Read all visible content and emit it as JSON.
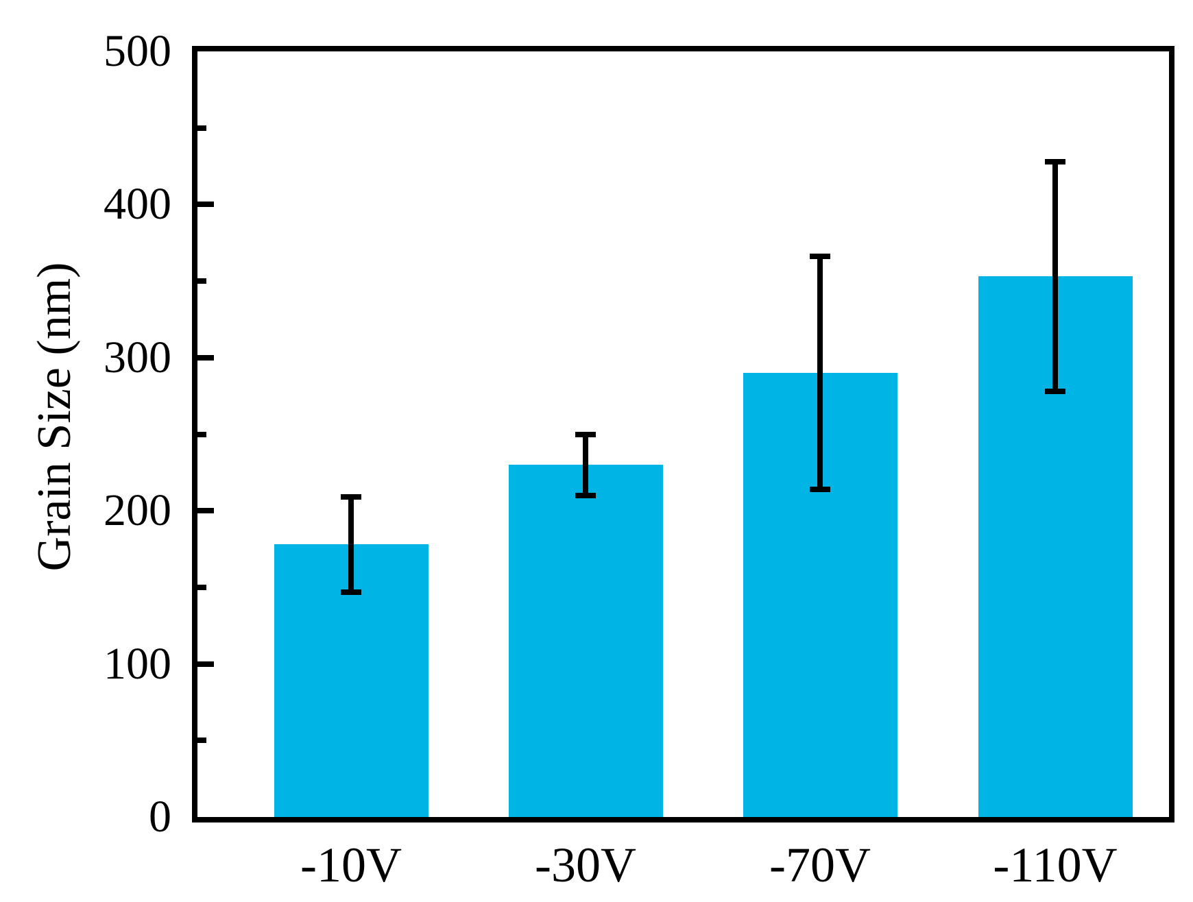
{
  "chart_data": {
    "type": "bar",
    "title": "",
    "categories": [
      "-10V",
      "-30V",
      "-70V",
      "-110V"
    ],
    "values": [
      178,
      230,
      290,
      353
    ],
    "error_bars": [
      31,
      20,
      76,
      75
    ],
    "xlabel": "",
    "ylabel": "Grain Size (nm)",
    "ylim": [
      0,
      500
    ],
    "ytick_values": [
      0,
      100,
      200,
      300,
      400,
      500
    ],
    "ytick_labels": [
      "0",
      "100",
      "200",
      "300",
      "400",
      "500"
    ],
    "ytick_minor_values": [
      50,
      150,
      250,
      350,
      450
    ],
    "bar_color": "#00B5E5",
    "error_color": "#000000",
    "axis_color": "#000000",
    "background_color": "#ffffff",
    "grid": false,
    "legend": false
  }
}
